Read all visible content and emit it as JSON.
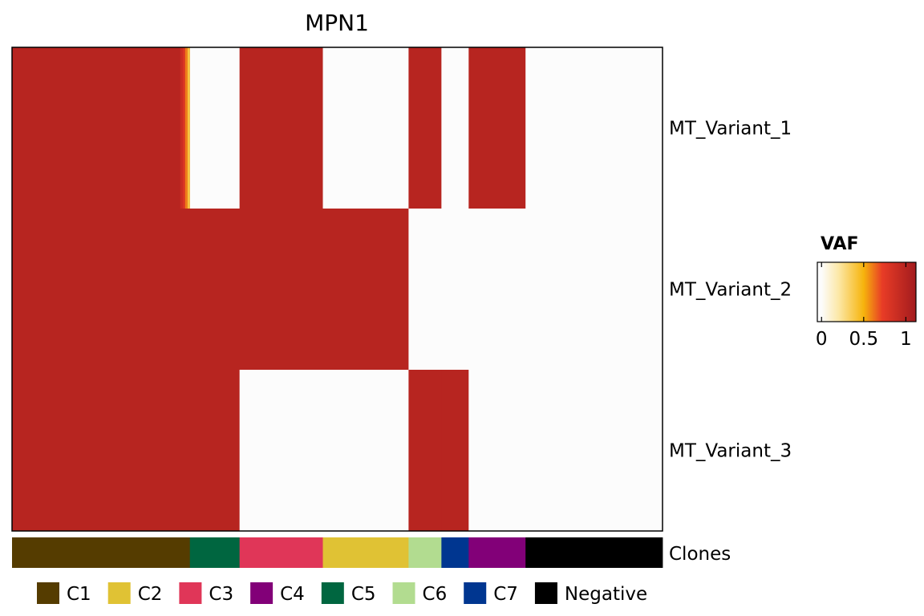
{
  "chart_data": {
    "type": "heatmap",
    "title": "MPN1",
    "rows": [
      "MT_Variant_1",
      "MT_Variant_2",
      "MT_Variant_3"
    ],
    "annotation_label": "Clones",
    "colorbar": {
      "title": "VAF",
      "ticks": [
        "0",
        "0.5",
        "1"
      ],
      "tick_values": [
        0,
        0.5,
        1
      ],
      "range": [
        -0.05,
        1.12
      ],
      "stops": [
        {
          "v": 0.0,
          "color": "#fcfcfc"
        },
        {
          "v": 0.2,
          "color": "#fce8a8"
        },
        {
          "v": 0.5,
          "color": "#f6b40c"
        },
        {
          "v": 0.72,
          "color": "#e83c26"
        },
        {
          "v": 1.12,
          "color": "#a21b1e"
        }
      ]
    },
    "clone_colors": {
      "C1": "#553c00",
      "C2": "#e0c234",
      "C3": "#e03658",
      "C4": "#820078",
      "C5": "#006640",
      "C6": "#b2dc90",
      "C7": "#003690",
      "Negative": "#000000"
    },
    "legend": [
      "C1",
      "C2",
      "C3",
      "C4",
      "C5",
      "C6",
      "C7",
      "Negative"
    ],
    "clone_order": [
      "C1",
      "C5",
      "C3",
      "C2",
      "C6",
      "C7",
      "C4",
      "Negative"
    ],
    "cells_per_clone": [
      222,
      62,
      104,
      107,
      41,
      34,
      71,
      171
    ],
    "vaf_profiles": {
      "MT_Variant_1": [
        {
          "clone": "C1",
          "value": 1.0
        },
        {
          "clone": "C5",
          "value": 0.0,
          "note_values": [
            0.9,
            0.8,
            0.6,
            0.4
          ]
        },
        {
          "clone": "C3",
          "value": 1.0
        },
        {
          "clone": "C2",
          "value": 0.0
        },
        {
          "clone": "C6",
          "value": 1.0
        },
        {
          "clone": "C7",
          "value": 0.0
        },
        {
          "clone": "C4",
          "value": 1.0
        },
        {
          "clone": "Negative",
          "value": 0.0
        }
      ],
      "MT_Variant_2": [
        {
          "clone": "C1",
          "value": 1.0
        },
        {
          "clone": "C5",
          "value": 1.0
        },
        {
          "clone": "C3",
          "value": 1.0
        },
        {
          "clone": "C2",
          "value": 1.0
        },
        {
          "clone": "C6",
          "value": 0.0
        },
        {
          "clone": "C7",
          "value": 0.0
        },
        {
          "clone": "C4",
          "value": 0.0
        },
        {
          "clone": "Negative",
          "value": 0.0
        }
      ],
      "MT_Variant_3": [
        {
          "clone": "C1",
          "value": 1.0
        },
        {
          "clone": "C5",
          "value": 1.0
        },
        {
          "clone": "C3",
          "value": 0.0
        },
        {
          "clone": "C2",
          "value": 0.0
        },
        {
          "clone": "C6",
          "value": 1.0
        },
        {
          "clone": "C7",
          "value": 1.0
        },
        {
          "clone": "C4",
          "value": 0.0
        },
        {
          "clone": "Negative",
          "value": 0.0
        }
      ]
    }
  }
}
